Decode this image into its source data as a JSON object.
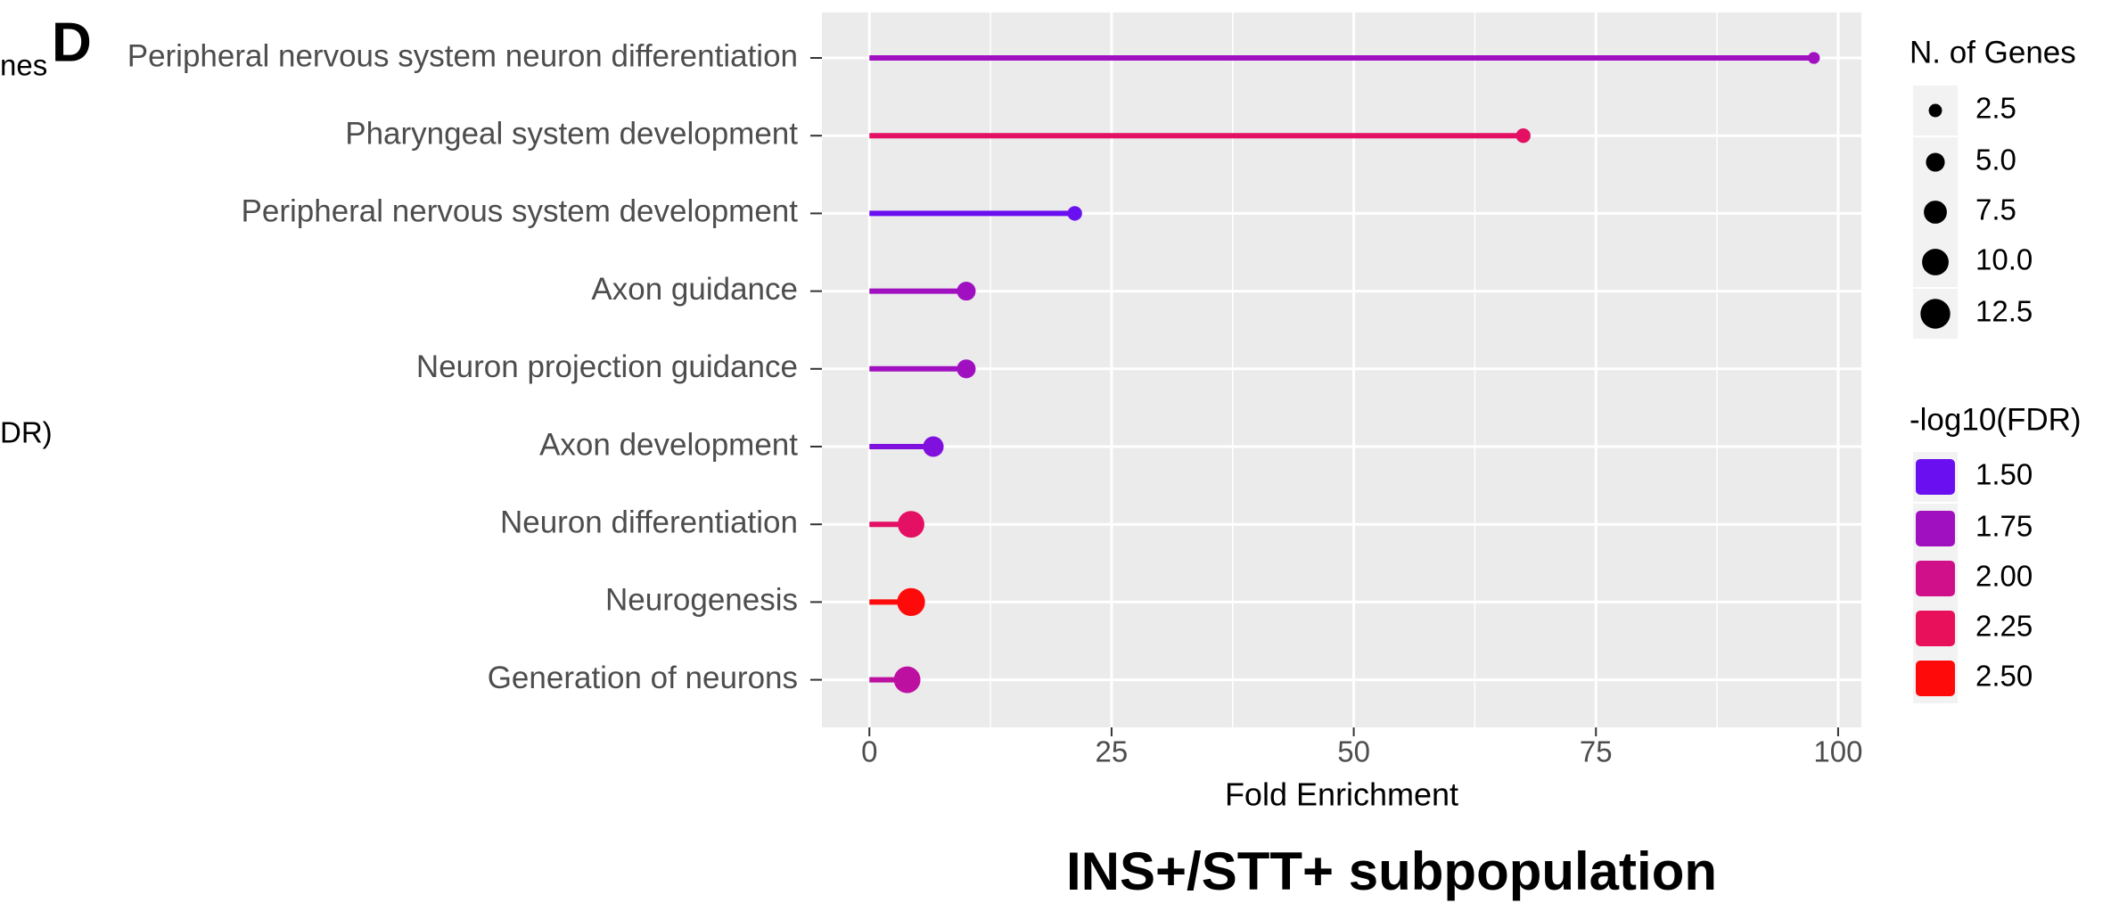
{
  "chart_data": {
    "type": "lollipop",
    "panel_label": "D",
    "title": "INS+/STT+ subpopulation",
    "x_label": "Fold Enrichment",
    "clipped_texts": [
      "nes",
      "DR)"
    ],
    "categories": [
      "Peripheral nervous system neuron differentiation",
      "Pharyngeal system development",
      "Peripheral nervous system development",
      "Axon guidance",
      "Neuron projection guidance",
      "Axon development",
      "Neuron differentiation",
      "Neurogenesis",
      "Generation of neurons"
    ],
    "values": [
      97.5,
      67.5,
      21.2,
      10.0,
      10.0,
      6.6,
      4.3,
      4.3,
      3.9
    ],
    "sizes": [
      2,
      3,
      3,
      5,
      5,
      6,
      10,
      11,
      10
    ],
    "fdr": [
      1.75,
      2.2,
      1.4,
      1.75,
      1.75,
      1.6,
      2.2,
      2.5,
      1.9
    ],
    "xlim": [
      -4.9,
      102.4
    ],
    "xticks": [
      0,
      25,
      50,
      75,
      100
    ],
    "grid": true,
    "size_legend": {
      "title": "N. of Genes",
      "values": [
        2.5,
        {
          "value": 5,
          "label": "5.0"
        },
        7.5,
        {
          "value": 10,
          "label": "10.0"
        },
        12.5
      ]
    },
    "color_legend": {
      "title": "-log10(FDR)",
      "values": [
        {
          "value": 1.5,
          "label": "1.50"
        },
        {
          "value": 1.75,
          "label": "1.75"
        },
        {
          "value": 2,
          "label": "2.00"
        },
        {
          "value": 2.25,
          "label": "2.25"
        },
        {
          "value": 2.5,
          "label": "2.50"
        }
      ],
      "colors": [
        "#6a10f0",
        "#a010c0",
        "#d0108a",
        "#e8105a",
        "#ff0a0a"
      ]
    }
  }
}
